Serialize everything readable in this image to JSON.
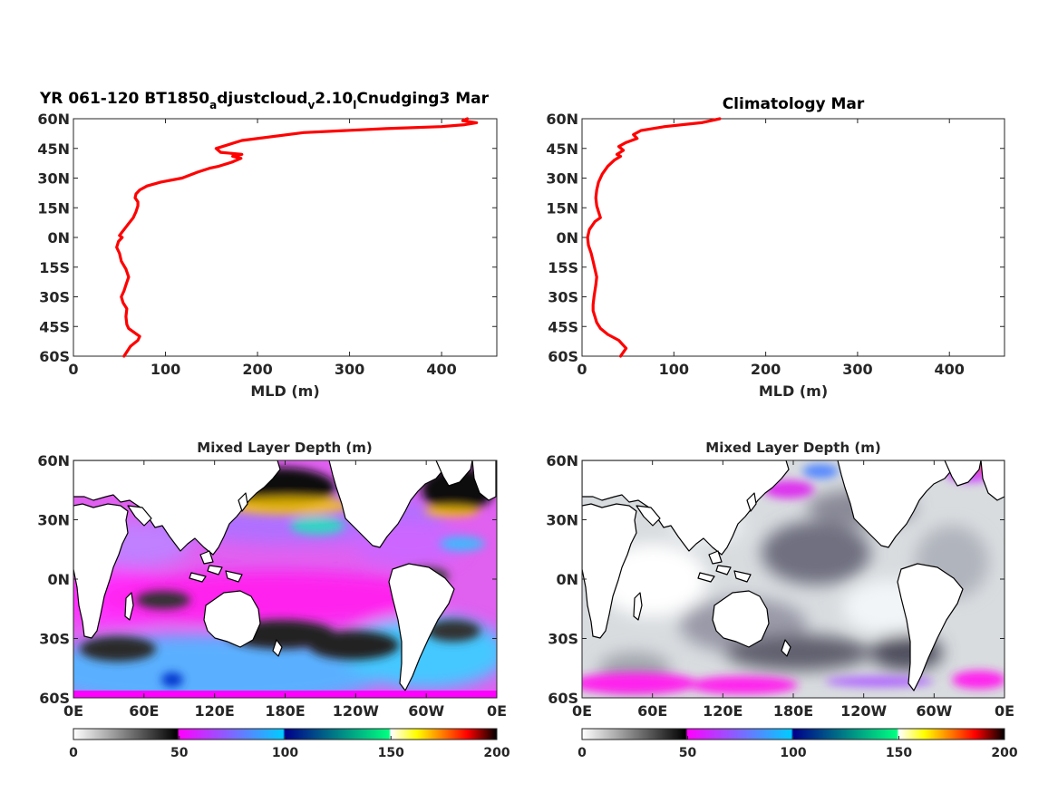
{
  "figure": {
    "colormap": {
      "ticks": [
        "0",
        "50",
        "100",
        "150",
        "200"
      ],
      "segments": [
        {
          "from": 0,
          "to": 50,
          "colors": [
            "#ffffff",
            "#000000"
          ]
        },
        {
          "from": 50,
          "to": 100,
          "colors": [
            "#ff00ff",
            "#00ccff"
          ]
        },
        {
          "from": 100,
          "to": 150,
          "colors": [
            "#00008b",
            "#00ff80"
          ]
        },
        {
          "from": 150,
          "to": 200,
          "colors": [
            "#ffffff",
            "#ffff00",
            "#ff8000",
            "#ff0000",
            "#000000"
          ]
        }
      ]
    },
    "colors": {
      "profile": "#ff0000"
    }
  },
  "chart_data": [
    {
      "type": "line",
      "title_main": "YR 061-120 BT1850",
      "title_sub1": "a",
      "title_mid": "djustcloud",
      "title_sub2": "v",
      "title_mid2": "2.10",
      "title_sub3": "l",
      "title_end": "Cnudging3 Mar",
      "xlabel": "MLD (m)",
      "ylabel": "",
      "xlim": [
        0,
        460
      ],
      "ylim": [
        -60,
        60
      ],
      "xticks": [
        "0",
        "100",
        "200",
        "300",
        "400"
      ],
      "yticks": [
        "60N",
        "45N",
        "30N",
        "15N",
        "0N",
        "15S",
        "30S",
        "45S",
        "60S"
      ],
      "series": [
        {
          "x": [
            55,
            62,
            70,
            72,
            66,
            60,
            58,
            57,
            58,
            54,
            52,
            55,
            57,
            60,
            57,
            52,
            50,
            47,
            49,
            53,
            50,
            55,
            60,
            65,
            68,
            70,
            70,
            67,
            68,
            72,
            80,
            95,
            118,
            135,
            148,
            158,
            172,
            182,
            173,
            183,
            160,
            155,
            183,
            250,
            340,
            400,
            425,
            438,
            423,
            428
          ],
          "y": [
            -60,
            -55,
            -52,
            -50,
            -48,
            -46,
            -44,
            -40,
            -36,
            -33,
            -30,
            -27,
            -24,
            -20,
            -16,
            -12,
            -8,
            -5,
            -2,
            0,
            1,
            4,
            7,
            10,
            13,
            16,
            18,
            20,
            22,
            24,
            26,
            28,
            30,
            33,
            35,
            36,
            38,
            40,
            41,
            42,
            43,
            45,
            49,
            53,
            55,
            56,
            57,
            58,
            59,
            60
          ]
        }
      ]
    },
    {
      "type": "line",
      "title": "Climatology Mar",
      "xlabel": "MLD (m)",
      "ylabel": "",
      "xlim": [
        0,
        460
      ],
      "ylim": [
        -60,
        60
      ],
      "xticks": [
        "0",
        "100",
        "200",
        "300",
        "400"
      ],
      "yticks": [
        "60N",
        "45N",
        "30N",
        "15N",
        "0N",
        "15S",
        "30S",
        "45S",
        "60S"
      ],
      "series": [
        {
          "x": [
            42,
            48,
            40,
            28,
            20,
            16,
            14,
            12,
            12,
            13,
            14,
            15,
            16,
            14,
            12,
            10,
            7,
            6,
            8,
            14,
            20,
            18,
            16,
            15,
            16,
            18,
            22,
            28,
            35,
            42,
            38,
            45,
            40,
            48,
            60,
            56,
            64,
            90,
            130,
            150
          ],
          "y": [
            -60,
            -56,
            -52,
            -49,
            -46,
            -43,
            -40,
            -37,
            -34,
            -30,
            -27,
            -24,
            -20,
            -16,
            -12,
            -8,
            -4,
            0,
            4,
            8,
            10,
            13,
            16,
            20,
            24,
            28,
            32,
            36,
            39,
            41,
            42,
            44,
            46,
            48,
            50,
            52,
            54,
            56,
            58,
            60
          ]
        }
      ]
    },
    {
      "type": "heatmap",
      "title": "Mixed Layer Depth (m)",
      "xticks": [
        "0E",
        "60E",
        "120E",
        "180E",
        "120W",
        "60W",
        "0E"
      ],
      "yticks": [
        "60N",
        "30N",
        "0N",
        "30S",
        "60S"
      ],
      "value_range": [
        0,
        200
      ]
    },
    {
      "type": "heatmap",
      "title": "Mixed Layer Depth (m)",
      "xticks": [
        "0E",
        "60E",
        "120E",
        "180E",
        "120W",
        "60W",
        "0E"
      ],
      "yticks": [
        "60N",
        "30N",
        "0N",
        "30S",
        "60S"
      ],
      "value_range": [
        0,
        200
      ]
    }
  ]
}
